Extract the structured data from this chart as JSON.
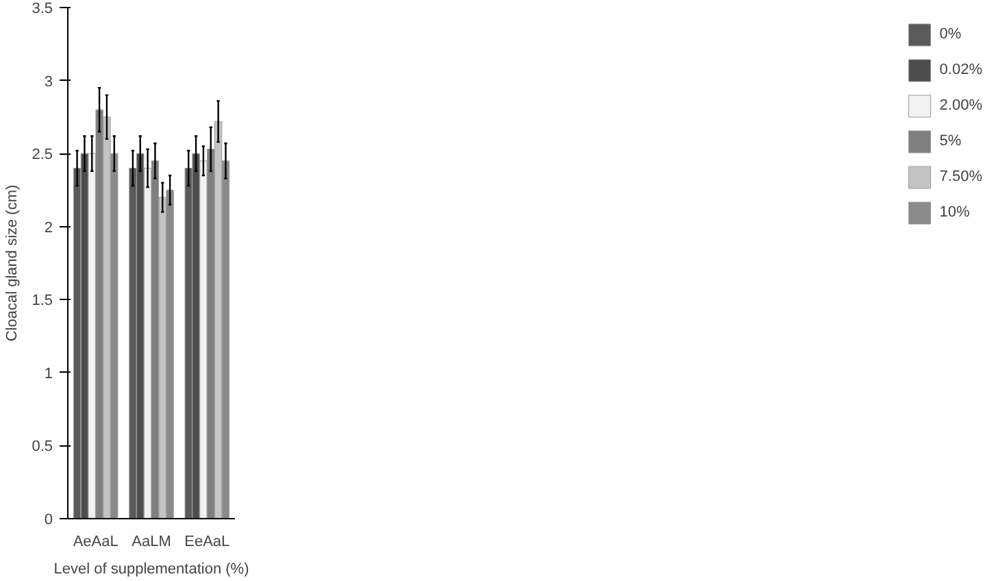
{
  "chart_data": {
    "type": "bar",
    "xlabel": "Level of supplementation (%)",
    "ylabel": "Cloacal gland size (cm)",
    "categories": [
      "AeAaL",
      "AaLM",
      "EeAaL"
    ],
    "series": [
      {
        "name": "0%",
        "color": "#5a5a5a",
        "values": [
          2.4,
          2.4,
          2.4
        ],
        "errors": [
          0.12,
          0.12,
          0.12
        ]
      },
      {
        "name": "0.02%",
        "color": "#4d4d4d",
        "values": [
          2.5,
          2.5,
          2.5
        ],
        "errors": [
          0.12,
          0.12,
          0.12
        ]
      },
      {
        "name": "2.00%",
        "color": "#f2f2f2",
        "values": [
          2.5,
          2.4,
          2.45
        ],
        "errors": [
          0.12,
          0.13,
          0.1
        ]
      },
      {
        "name": "5%",
        "color": "#7f7f7f",
        "values": [
          2.8,
          2.45,
          2.53
        ],
        "errors": [
          0.15,
          0.12,
          0.15
        ]
      },
      {
        "name": "7.50%",
        "color": "#c4c4c4",
        "values": [
          2.75,
          2.2,
          2.72
        ],
        "errors": [
          0.15,
          0.1,
          0.14
        ]
      },
      {
        "name": "10%",
        "color": "#8a8a8a",
        "values": [
          2.5,
          2.25,
          2.45
        ],
        "errors": [
          0.12,
          0.1,
          0.12
        ]
      }
    ],
    "ylim": [
      0,
      3.5
    ],
    "yticks": [
      0,
      0.5,
      1,
      1.5,
      2,
      2.5,
      3,
      3.5
    ],
    "grid": false,
    "legend": "right"
  }
}
